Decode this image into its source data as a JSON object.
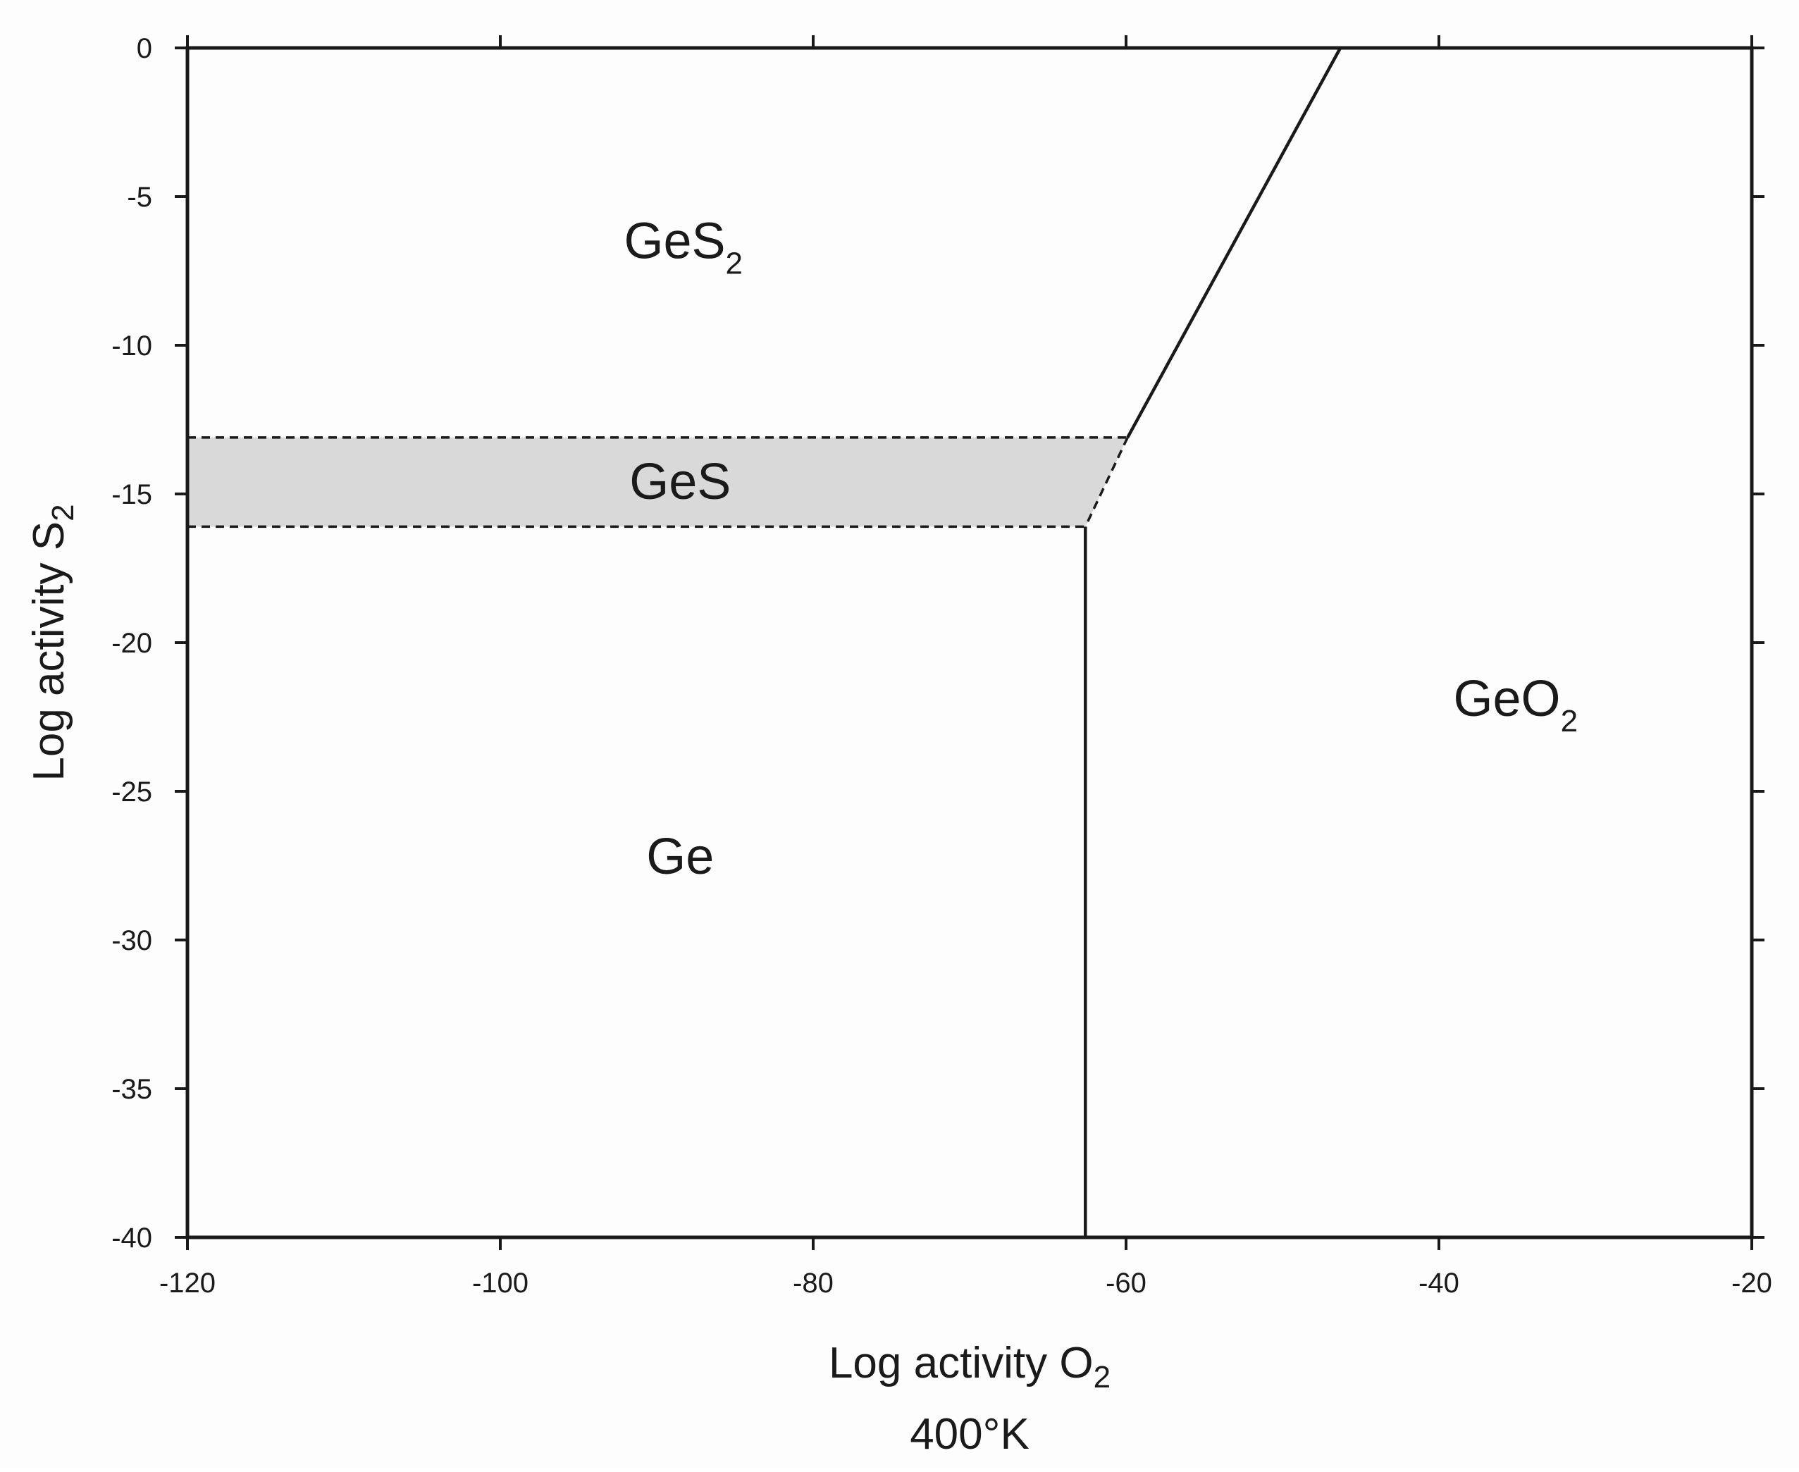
{
  "chart_data": {
    "type": "diagram",
    "xlabel": {
      "text": "Log activity O",
      "subscript": "2"
    },
    "ylabel": {
      "text": "Log activity S",
      "subscript": "2"
    },
    "condition": "400°K",
    "xlim": [
      -120,
      -20
    ],
    "ylim": [
      -40,
      0
    ],
    "x_ticks": [
      -120,
      -100,
      -80,
      -60,
      -40,
      -20
    ],
    "y_ticks": [
      0,
      -5,
      -10,
      -15,
      -20,
      -25,
      -30,
      -35,
      -40
    ],
    "grid": false,
    "regions": [
      {
        "name": "GeS",
        "subscript": "2",
        "label_at": [
          -88.3,
          -6.5
        ]
      },
      {
        "name": "GeS",
        "subscript": "",
        "label_at": [
          -88.5,
          -14.6
        ],
        "shaded": true,
        "fill": "#d9d9d9"
      },
      {
        "name": "Ge",
        "subscript": "",
        "label_at": [
          -88.5,
          -27.2
        ]
      },
      {
        "name": "GeO",
        "subscript": "2",
        "label_at": [
          -35.1,
          -21.9
        ]
      }
    ],
    "boundaries": [
      {
        "name": "GeS2-GeO2",
        "style": "solid",
        "points": [
          [
            -46.3,
            0
          ],
          [
            -59.9,
            -13.1
          ]
        ]
      },
      {
        "name": "GeS-GeO2",
        "style": "dashed",
        "points": [
          [
            -59.9,
            -13.1
          ],
          [
            -62.6,
            -16.1
          ]
        ]
      },
      {
        "name": "Ge-GeO2",
        "style": "solid",
        "points": [
          [
            -62.6,
            -16.1
          ],
          [
            -62.6,
            -40
          ]
        ]
      },
      {
        "name": "GeS-upper",
        "style": "dashed",
        "points": [
          [
            -120,
            -13.1
          ],
          [
            -59.9,
            -13.1
          ]
        ]
      },
      {
        "name": "GeS-lower",
        "style": "dashed",
        "points": [
          [
            -120,
            -16.1
          ],
          [
            -62.6,
            -16.1
          ]
        ]
      }
    ],
    "colors": {
      "line": "#1a1a1a",
      "shading": "#d9d9d9",
      "background": "#fdfdfd"
    }
  }
}
